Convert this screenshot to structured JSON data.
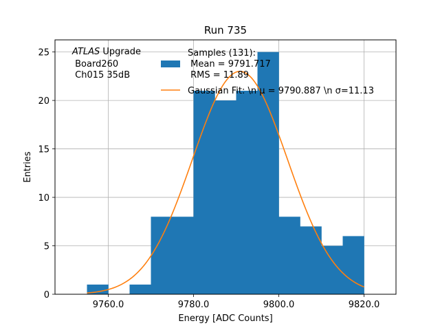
{
  "chart_data": {
    "type": "bar",
    "title": "Run 735",
    "xlabel": "Energy [ADC Counts]",
    "ylabel": "Entries",
    "xlim": [
      9747.5,
      9827.5
    ],
    "ylim": [
      0,
      26.25
    ],
    "grid": true,
    "xticks": [
      9760,
      9780,
      9800,
      9820
    ],
    "xtick_labels": [
      "9760.0",
      "9780.0",
      "9800.0",
      "9820.0"
    ],
    "yticks": [
      0,
      5,
      10,
      15,
      20,
      25
    ],
    "ytick_labels": [
      "0",
      "5",
      "10",
      "15",
      "20",
      "25"
    ],
    "bin_edges": [
      9755,
      9760,
      9765,
      9770,
      9775,
      9780,
      9785,
      9790,
      9795,
      9800,
      9805,
      9810,
      9815,
      9820
    ],
    "counts": [
      1,
      0,
      1,
      8,
      8,
      21,
      20,
      21,
      25,
      8,
      7,
      5,
      6
    ],
    "series": [
      {
        "name": "Samples",
        "kind": "histogram",
        "color": "#1f77b4"
      },
      {
        "name": "Gaussian Fit",
        "kind": "line",
        "color": "#ff7f0e",
        "amplitude": 23.0,
        "mu": 9790.887,
        "sigma": 11.13,
        "x_range": [
          9755,
          9820
        ]
      }
    ],
    "annotation": {
      "italic_part": "ATLAS",
      "line1_rest": " Upgrade",
      "line2": " Board260",
      "line3": " Ch015 35dB"
    },
    "legend": {
      "position": "top-center",
      "samples_lines": [
        "Samples (131):",
        " Mean = 9791.717",
        " RMS = 11.89"
      ],
      "fit_label": "Gaussian Fit: \\n μ = 9790.887 \\n σ=11.13"
    }
  }
}
